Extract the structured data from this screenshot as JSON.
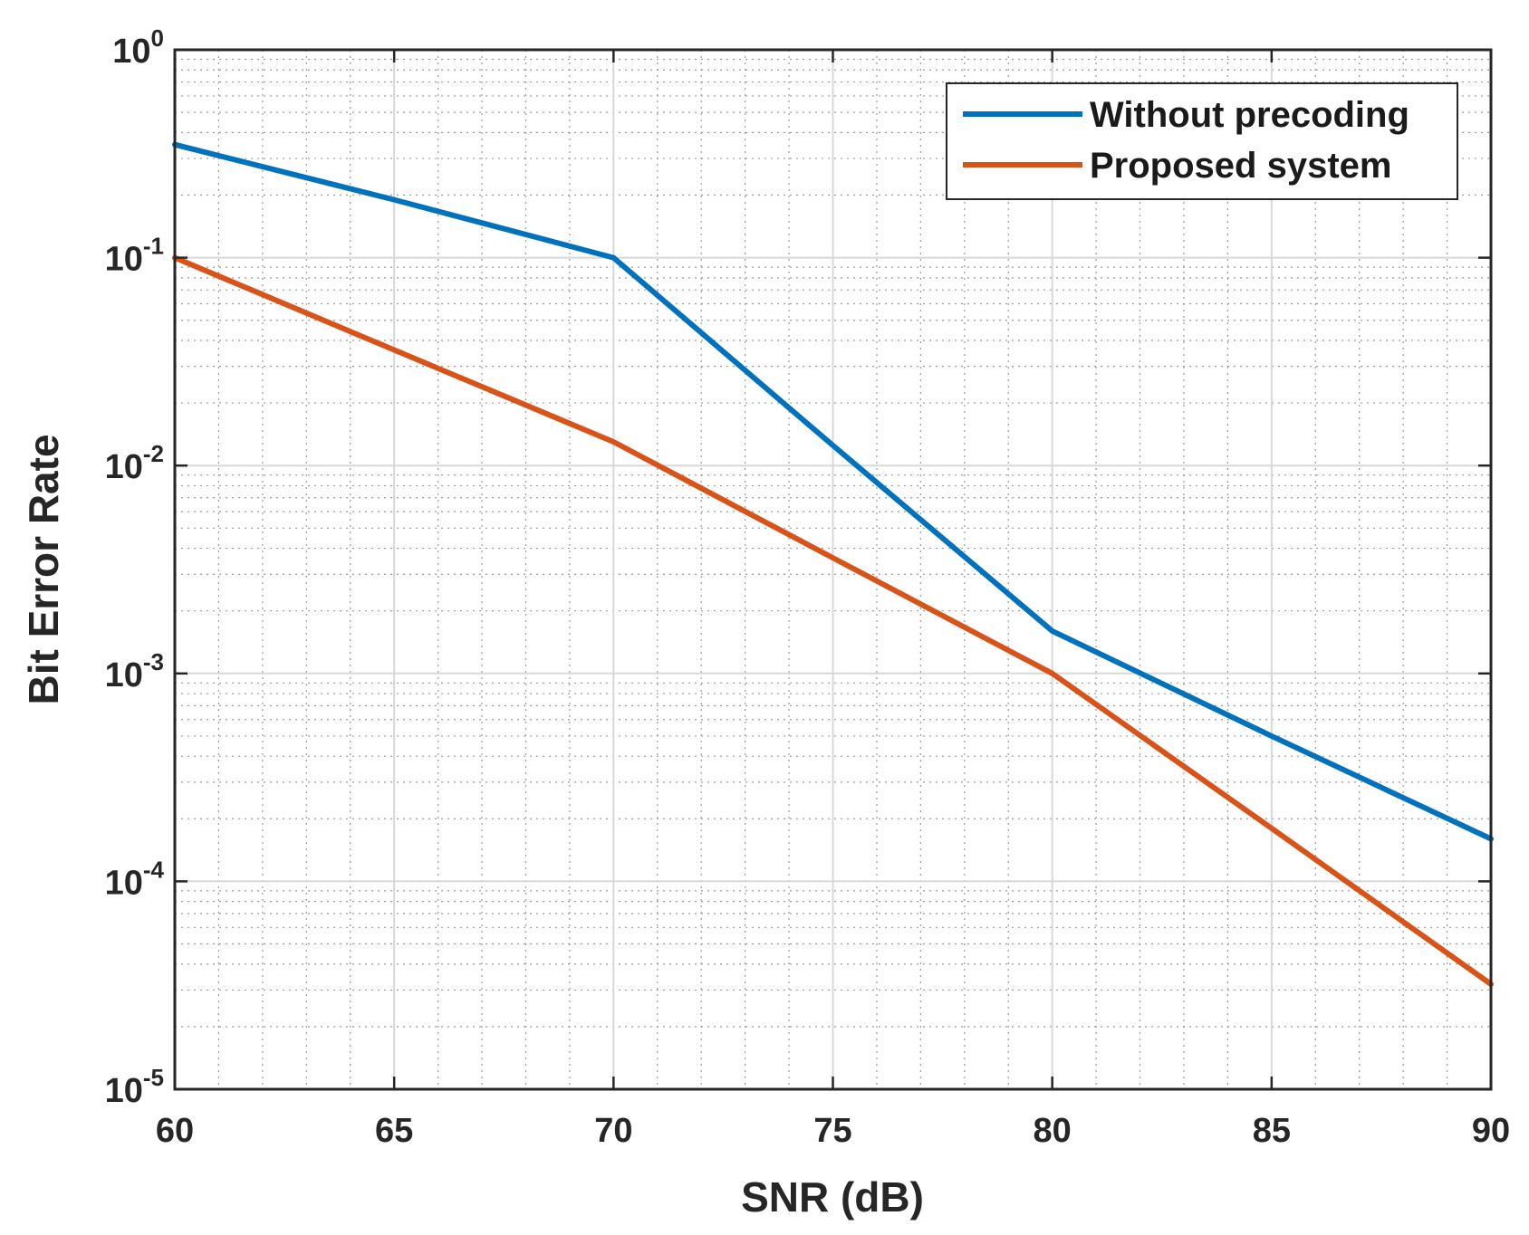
{
  "chart_data": {
    "type": "line",
    "title": "",
    "xlabel": "SNR (dB)",
    "ylabel": "Bit Error Rate",
    "yscale": "log",
    "xlim": [
      60,
      90
    ],
    "ylim": [
      1e-05,
      1
    ],
    "xticks": [
      60,
      65,
      70,
      75,
      80,
      85,
      90
    ],
    "xtick_labels": [
      "60",
      "65",
      "70",
      "75",
      "80",
      "85",
      "90"
    ],
    "yticks": [
      {
        "value": 1,
        "base": "10",
        "exp": "0"
      },
      {
        "value": 0.1,
        "base": "10",
        "exp": "-1"
      },
      {
        "value": 0.01,
        "base": "10",
        "exp": "-2"
      },
      {
        "value": 0.001,
        "base": "10",
        "exp": "-3"
      },
      {
        "value": 0.0001,
        "base": "10",
        "exp": "-4"
      },
      {
        "value": 1e-05,
        "base": "10",
        "exp": "-5"
      }
    ],
    "grid": true,
    "minor_grid": true,
    "legend_position": "top-right",
    "series": [
      {
        "name": "Without precoding",
        "color": "#0072BD",
        "x": [
          60,
          65,
          70,
          75,
          80,
          85,
          90
        ],
        "y": [
          0.35,
          0.19,
          0.1,
          0.0125,
          0.0016,
          0.0005,
          0.00016
        ]
      },
      {
        "name": "Proposed system",
        "color": "#D95319",
        "x": [
          60,
          65,
          70,
          75,
          80,
          85,
          90
        ],
        "y": [
          0.1,
          0.036,
          0.013,
          0.0036,
          0.001,
          0.00018,
          3.2e-05
        ]
      }
    ]
  }
}
